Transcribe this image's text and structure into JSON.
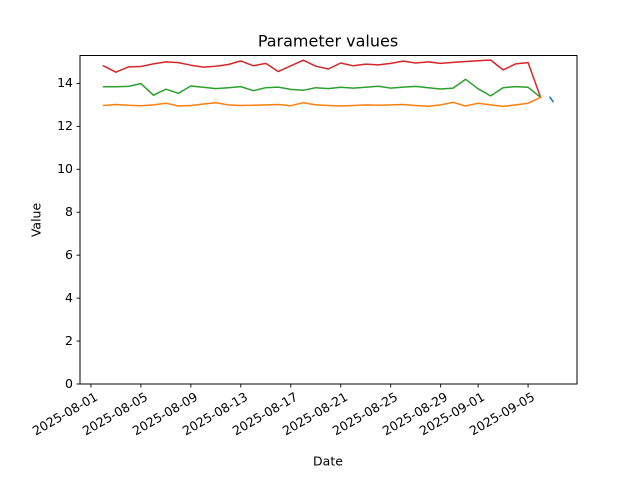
{
  "figure": {
    "title": "Parameter values",
    "xlabel": "Date",
    "ylabel": "Value"
  },
  "chart_data": {
    "type": "line",
    "title": "Parameter values",
    "xlabel": "Date",
    "ylabel": "Value",
    "grid": false,
    "legend": "none",
    "background": "#ffffff",
    "spine_color": "#000000",
    "ylim": [
      0,
      15.3
    ],
    "y_ticks": [
      0,
      2,
      4,
      6,
      8,
      10,
      12,
      14
    ],
    "xlim_dates": [
      "2025-07-31T03:00",
      "2025-09-08T22:00"
    ],
    "x_tick_labels": [
      "2025-08-01",
      "2025-08-05",
      "2025-08-09",
      "2025-08-13",
      "2025-08-17",
      "2025-08-21",
      "2025-08-25",
      "2025-08-29",
      "2025-09-01",
      "2025-09-05"
    ],
    "dates": [
      "2025-08-02",
      "2025-08-03",
      "2025-08-04",
      "2025-08-05",
      "2025-08-06",
      "2025-08-07",
      "2025-08-08",
      "2025-08-09",
      "2025-08-10",
      "2025-08-11",
      "2025-08-12",
      "2025-08-13",
      "2025-08-14",
      "2025-08-15",
      "2025-08-16",
      "2025-08-17",
      "2025-08-18",
      "2025-08-19",
      "2025-08-20",
      "2025-08-21",
      "2025-08-22",
      "2025-08-23",
      "2025-08-24",
      "2025-08-25",
      "2025-08-26",
      "2025-08-27",
      "2025-08-28",
      "2025-08-29",
      "2025-08-30",
      "2025-08-31",
      "2025-09-01",
      "2025-09-02",
      "2025-09-03",
      "2025-09-04",
      "2025-09-05",
      "2025-09-06"
    ],
    "series": [
      {
        "name": "red-line",
        "color": "#d62728",
        "values": [
          14.82,
          14.52,
          14.77,
          14.79,
          14.91,
          15.0,
          14.97,
          14.85,
          14.76,
          14.8,
          14.88,
          15.05,
          14.82,
          14.93,
          14.55,
          14.82,
          15.08,
          14.8,
          14.67,
          14.95,
          14.82,
          14.9,
          14.86,
          14.93,
          15.04,
          14.95,
          15.0,
          14.93,
          14.98,
          15.02,
          15.06,
          15.09,
          14.63,
          14.91,
          14.97,
          13.35
        ]
      },
      {
        "name": "green-line",
        "color": "#2ca02c",
        "values": [
          13.84,
          13.84,
          13.86,
          13.99,
          13.45,
          13.73,
          13.54,
          13.88,
          13.82,
          13.76,
          13.8,
          13.85,
          13.66,
          13.8,
          13.83,
          13.72,
          13.68,
          13.8,
          13.76,
          13.82,
          13.78,
          13.82,
          13.87,
          13.78,
          13.83,
          13.86,
          13.8,
          13.74,
          13.78,
          14.19,
          13.75,
          13.42,
          13.8,
          13.85,
          13.82,
          13.35
        ]
      },
      {
        "name": "orange-line",
        "color": "#ff7f0e",
        "values": [
          12.97,
          13.02,
          12.98,
          12.96,
          13.0,
          13.08,
          12.95,
          12.97,
          13.04,
          13.1,
          13.0,
          12.97,
          12.98,
          13.0,
          13.02,
          12.96,
          13.1,
          13.0,
          12.97,
          12.95,
          12.97,
          13.0,
          12.98,
          13.0,
          13.02,
          12.97,
          12.94,
          13.0,
          13.12,
          12.95,
          13.08,
          13.0,
          12.93,
          13.0,
          13.08,
          13.35
        ]
      }
    ],
    "extra_series": [
      {
        "name": "blue-segment",
        "color": "#1f77b4",
        "points": [
          [
            "2025-09-06T18:00",
            13.36
          ],
          [
            "2025-09-07T00:00",
            13.15
          ]
        ]
      }
    ]
  }
}
